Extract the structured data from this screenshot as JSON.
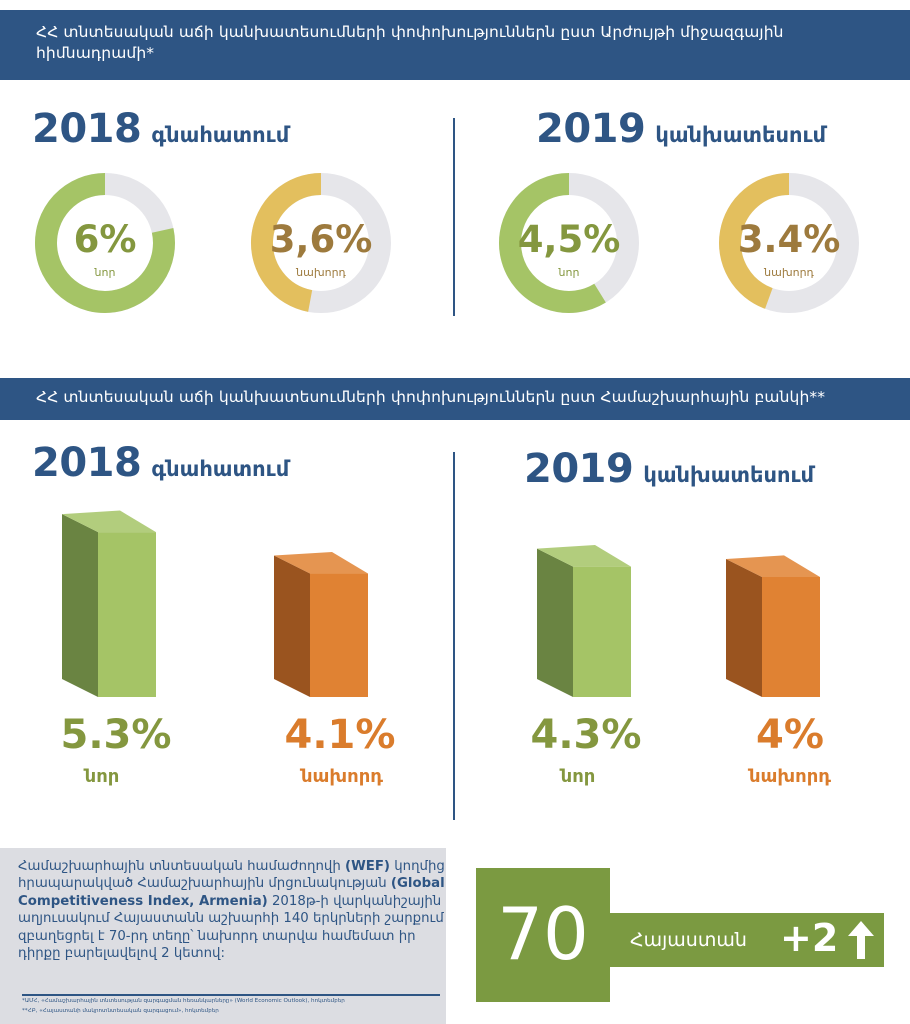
{
  "imf": {
    "title": "ՀՀ տնտեսական աճի կանխատեսումների փոփոխություններն ըստ Արժույթի միջազգային հիմնադրամի*",
    "year2018": {
      "year": "2018",
      "label": "գնահատում"
    },
    "year2019": {
      "year": "2019",
      "label": "կանխատեսում"
    }
  },
  "wb": {
    "title": "ՀՀ տնտեսական աճի կանխատեսումների փոփոխություններն ըստ Համաշխարհային բանկի**",
    "year2018": {
      "year": "2018",
      "label": "գնահատում"
    },
    "year2019": {
      "year": "2019",
      "label": "կանխատեսում"
    }
  },
  "chart_data": [
    {
      "type": "pie",
      "title": "ՀՀ տնտեսական աճի կանխատեսումների փոփոխություններն ըստ Արժույթի միջազգային հիմնադրամի*",
      "series": [
        {
          "name": "2018 գնահատում",
          "items": [
            {
              "label": "նոր",
              "value": 6,
              "display": "6%"
            },
            {
              "label": "նախորդ",
              "value": 3.6,
              "display": "3,6%"
            }
          ]
        },
        {
          "name": "2019 կանխատեսում",
          "items": [
            {
              "label": "նոր",
              "value": 4.5,
              "display": "4,5%"
            },
            {
              "label": "նախորդ",
              "value": 3.4,
              "display": "3.4%"
            }
          ]
        }
      ]
    },
    {
      "type": "bar",
      "title": "ՀՀ տնտեսական աճի կանխատեսումների փոփոխություններն ըստ Համաշխարհային բանկի**",
      "series": [
        {
          "name": "2018 գնահատում",
          "items": [
            {
              "label": "նոր",
              "value": 5.3,
              "display": "5.3%"
            },
            {
              "label": "նախորդ",
              "value": 4.1,
              "display": "4.1%"
            }
          ]
        },
        {
          "name": "2019 կանխատեսում",
          "items": [
            {
              "label": "նոր",
              "value": 4.3,
              "display": "4.3%"
            },
            {
              "label": "նախորդ",
              "value": 4.0,
              "display": "4%"
            }
          ]
        }
      ]
    }
  ],
  "colors": {
    "navy": "#2e5584",
    "green_light": "#a5c466",
    "green_dark": "#6a8442",
    "green_text": "#84973f",
    "gold": "#e3bf5e",
    "gold_text": "#9d7a3d",
    "orange": "#e08233",
    "orange_dark": "#9a541f",
    "orange_text": "#da7c2c",
    "ring_bg": "#e6e6ea"
  },
  "wef": {
    "p1": "Համաշխարհային տնտեսական համաժողովի ",
    "b1": "(WEF)",
    "p2": " կողմից հրապարակված Համաշխարհային մրցունակության ",
    "b2": "(Global Competitiveness Index, Armenia)",
    "p3": " 2018թ-ի վարկանիշային աղյուսակում Հայաստանն աշխարհի 140 երկրների շարքում զբաղեցրել է 70-րդ տեղը՝ նախորդ տարվա համեմատ իր դիրքը բարելավելով 2 կետով:",
    "note1": "*ԱՄՀ, «Համաշխարհային տնտեսության զարգացման հեռանկարները» (World Economic Outlook), հոկտեմբեր",
    "note2": "**ՀԲ, «Հայաստանի մակրոտնտեսական զարգացում», հոկտեմբեր"
  },
  "rank": {
    "value": "70",
    "country": "Հայաստան",
    "change": "+2"
  }
}
